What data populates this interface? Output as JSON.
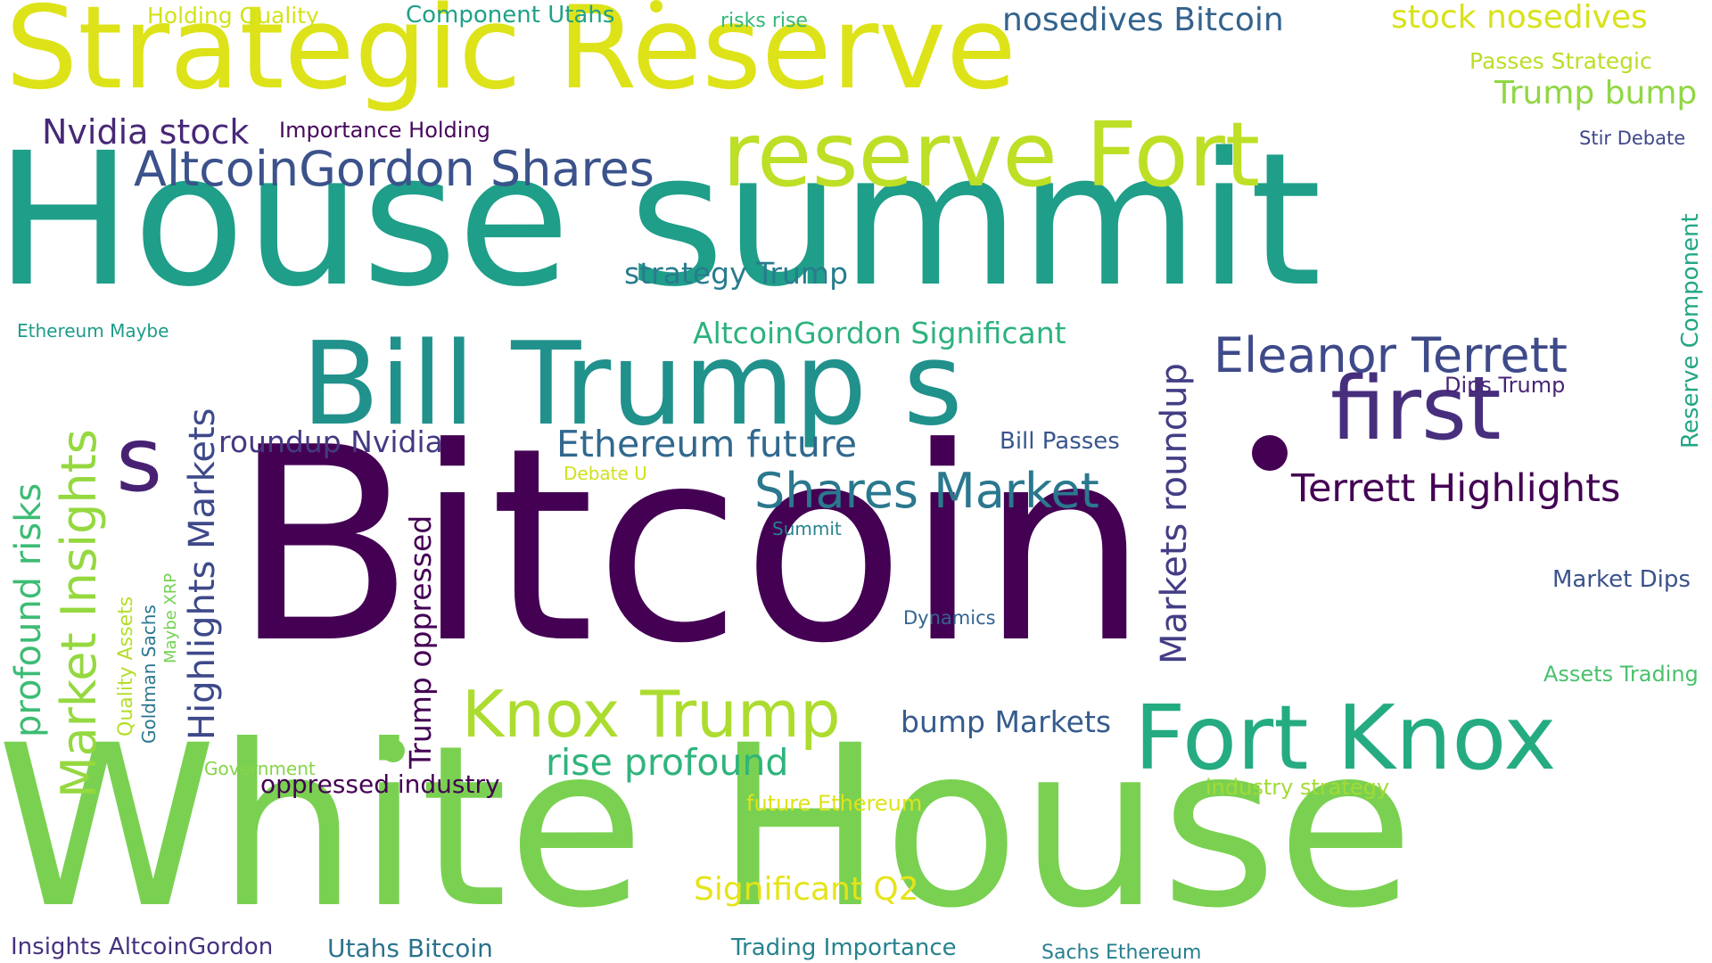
{
  "words": [
    {
      "id": "strategic-reserve",
      "text": "Strategic Reserve",
      "color": "#dde318"
    },
    {
      "id": "house-summit",
      "text": "House summit",
      "color": "#1f9e89"
    },
    {
      "id": "bitcoin",
      "text": "Bitcoin",
      "color": "#440154"
    },
    {
      "id": "white-house",
      "text": "White House",
      "color": "#7ad151"
    },
    {
      "id": "reserve-fort",
      "text": "reserve Fort",
      "color": "#bddf26"
    },
    {
      "id": "bill-trump-s",
      "text": "Bill Trump s",
      "color": "#21918c"
    },
    {
      "id": "first",
      "text": "first",
      "color": "#472f7d"
    },
    {
      "id": "fort-knox",
      "text": "Fort Knox",
      "color": "#25ab82"
    },
    {
      "id": "s",
      "text": "s",
      "color": "#482173"
    },
    {
      "id": "knox-trump",
      "text": "Knox Trump",
      "color": "#addc30"
    },
    {
      "id": "altcoingordon-shares",
      "text": "AltcoinGordon Shares",
      "color": "#3b528b"
    },
    {
      "id": "eleanor-terrett",
      "text": "Eleanor Terrett",
      "color": "#3e4a89"
    },
    {
      "id": "shares-market",
      "text": "Shares Market",
      "color": "#2a788e"
    },
    {
      "id": "terrett-highlights",
      "text": "Terrett Highlights",
      "color": "#440154"
    },
    {
      "id": "nvidia-stock",
      "text": "Nvidia stock",
      "color": "#482878"
    },
    {
      "id": "ethereum-future",
      "text": "Ethereum future",
      "color": "#31688e"
    },
    {
      "id": "rise-profound",
      "text": "rise profound",
      "color": "#2fb47c"
    },
    {
      "id": "significant-q2",
      "text": "Significant Q2",
      "color": "#e5e419"
    },
    {
      "id": "nosedives-bitcoin",
      "text": "nosedives Bitcoin",
      "color": "#33638d"
    },
    {
      "id": "stock-nosedives",
      "text": "stock nosedives",
      "color": "#d8e219"
    },
    {
      "id": "trump-bump",
      "text": "Trump bump",
      "color": "#90d743"
    },
    {
      "id": "altcoingordon-significant",
      "text": "AltcoinGordon Significant",
      "color": "#2db27d"
    },
    {
      "id": "roundup-nvidia",
      "text": "roundup Nvidia",
      "color": "#443a83"
    },
    {
      "id": "strategy-trump",
      "text": "strategy Trump",
      "color": "#287c8e"
    },
    {
      "id": "bump-markets",
      "text": "bump Markets",
      "color": "#365c8d"
    },
    {
      "id": "oppressed-industry",
      "text": "oppressed industry",
      "color": "#440154"
    },
    {
      "id": "insights-altcoingordon",
      "text": "Insights AltcoinGordon",
      "color": "#46327e"
    },
    {
      "id": "utahs-bitcoin",
      "text": "Utahs Bitcoin",
      "color": "#2c728e"
    },
    {
      "id": "trading-importance",
      "text": "Trading Importance",
      "color": "#26828e"
    },
    {
      "id": "component-utahs",
      "text": "Component Utahs",
      "color": "#1fa188"
    },
    {
      "id": "holding-quality",
      "text": "Holding Quality",
      "color": "#d2e21b"
    },
    {
      "id": "risks-rise",
      "text": "risks rise",
      "color": "#35b779"
    },
    {
      "id": "passes-strategic",
      "text": "Passes Strategic",
      "color": "#bade28"
    },
    {
      "id": "importance-holding",
      "text": "Importance Holding",
      "color": "#46085c"
    },
    {
      "id": "stir-debate",
      "text": "Stir Debate",
      "color": "#3f4889"
    },
    {
      "id": "ethereum-maybe",
      "text": "Ethereum Maybe",
      "color": "#1e9b8a"
    },
    {
      "id": "dips-trump",
      "text": "Dips Trump",
      "color": "#482475"
    },
    {
      "id": "bill-passes",
      "text": "Bill Passes",
      "color": "#39568c"
    },
    {
      "id": "debate-u",
      "text": "Debate U",
      "color": "#d0e11c"
    },
    {
      "id": "summit",
      "text": "Summit",
      "color": "#25838e"
    },
    {
      "id": "dynamics",
      "text": "Dynamics",
      "color": "#32648e"
    },
    {
      "id": "market-dips",
      "text": "Market Dips",
      "color": "#3b528b"
    },
    {
      "id": "assets-trading",
      "text": "Assets Trading",
      "color": "#4ac16d"
    },
    {
      "id": "government",
      "text": "Government",
      "color": "#86d549"
    },
    {
      "id": "future-ethereum",
      "text": "future Ethereum",
      "color": "#dfe318"
    },
    {
      "id": "industry-strategy",
      "text": "industry strategy",
      "color": "#a2da37"
    },
    {
      "id": "sachs-ethereum",
      "text": "Sachs Ethereum",
      "color": "#277f8e"
    },
    {
      "id": "profound-risks",
      "text": "profound risks",
      "color": "#3dbc74"
    },
    {
      "id": "market-insights",
      "text": "Market Insights",
      "color": "#95d840"
    },
    {
      "id": "highlights-markets",
      "text": "Highlights Markets",
      "color": "#3e4989"
    },
    {
      "id": "trump-oppressed",
      "text": "Trump oppressed",
      "color": "#440154"
    },
    {
      "id": "markets-roundup",
      "text": "Markets roundup",
      "color": "#433e85"
    },
    {
      "id": "reserve-component",
      "text": "Reserve Component",
      "color": "#22a785"
    },
    {
      "id": "quality-assets",
      "text": "Quality Assets",
      "color": "#b5de2b"
    },
    {
      "id": "goldman-sachs",
      "text": "Goldman Sachs",
      "color": "#2a778e"
    },
    {
      "id": "maybe-xrp",
      "text": "Maybe XRP",
      "color": "#74d055"
    }
  ]
}
